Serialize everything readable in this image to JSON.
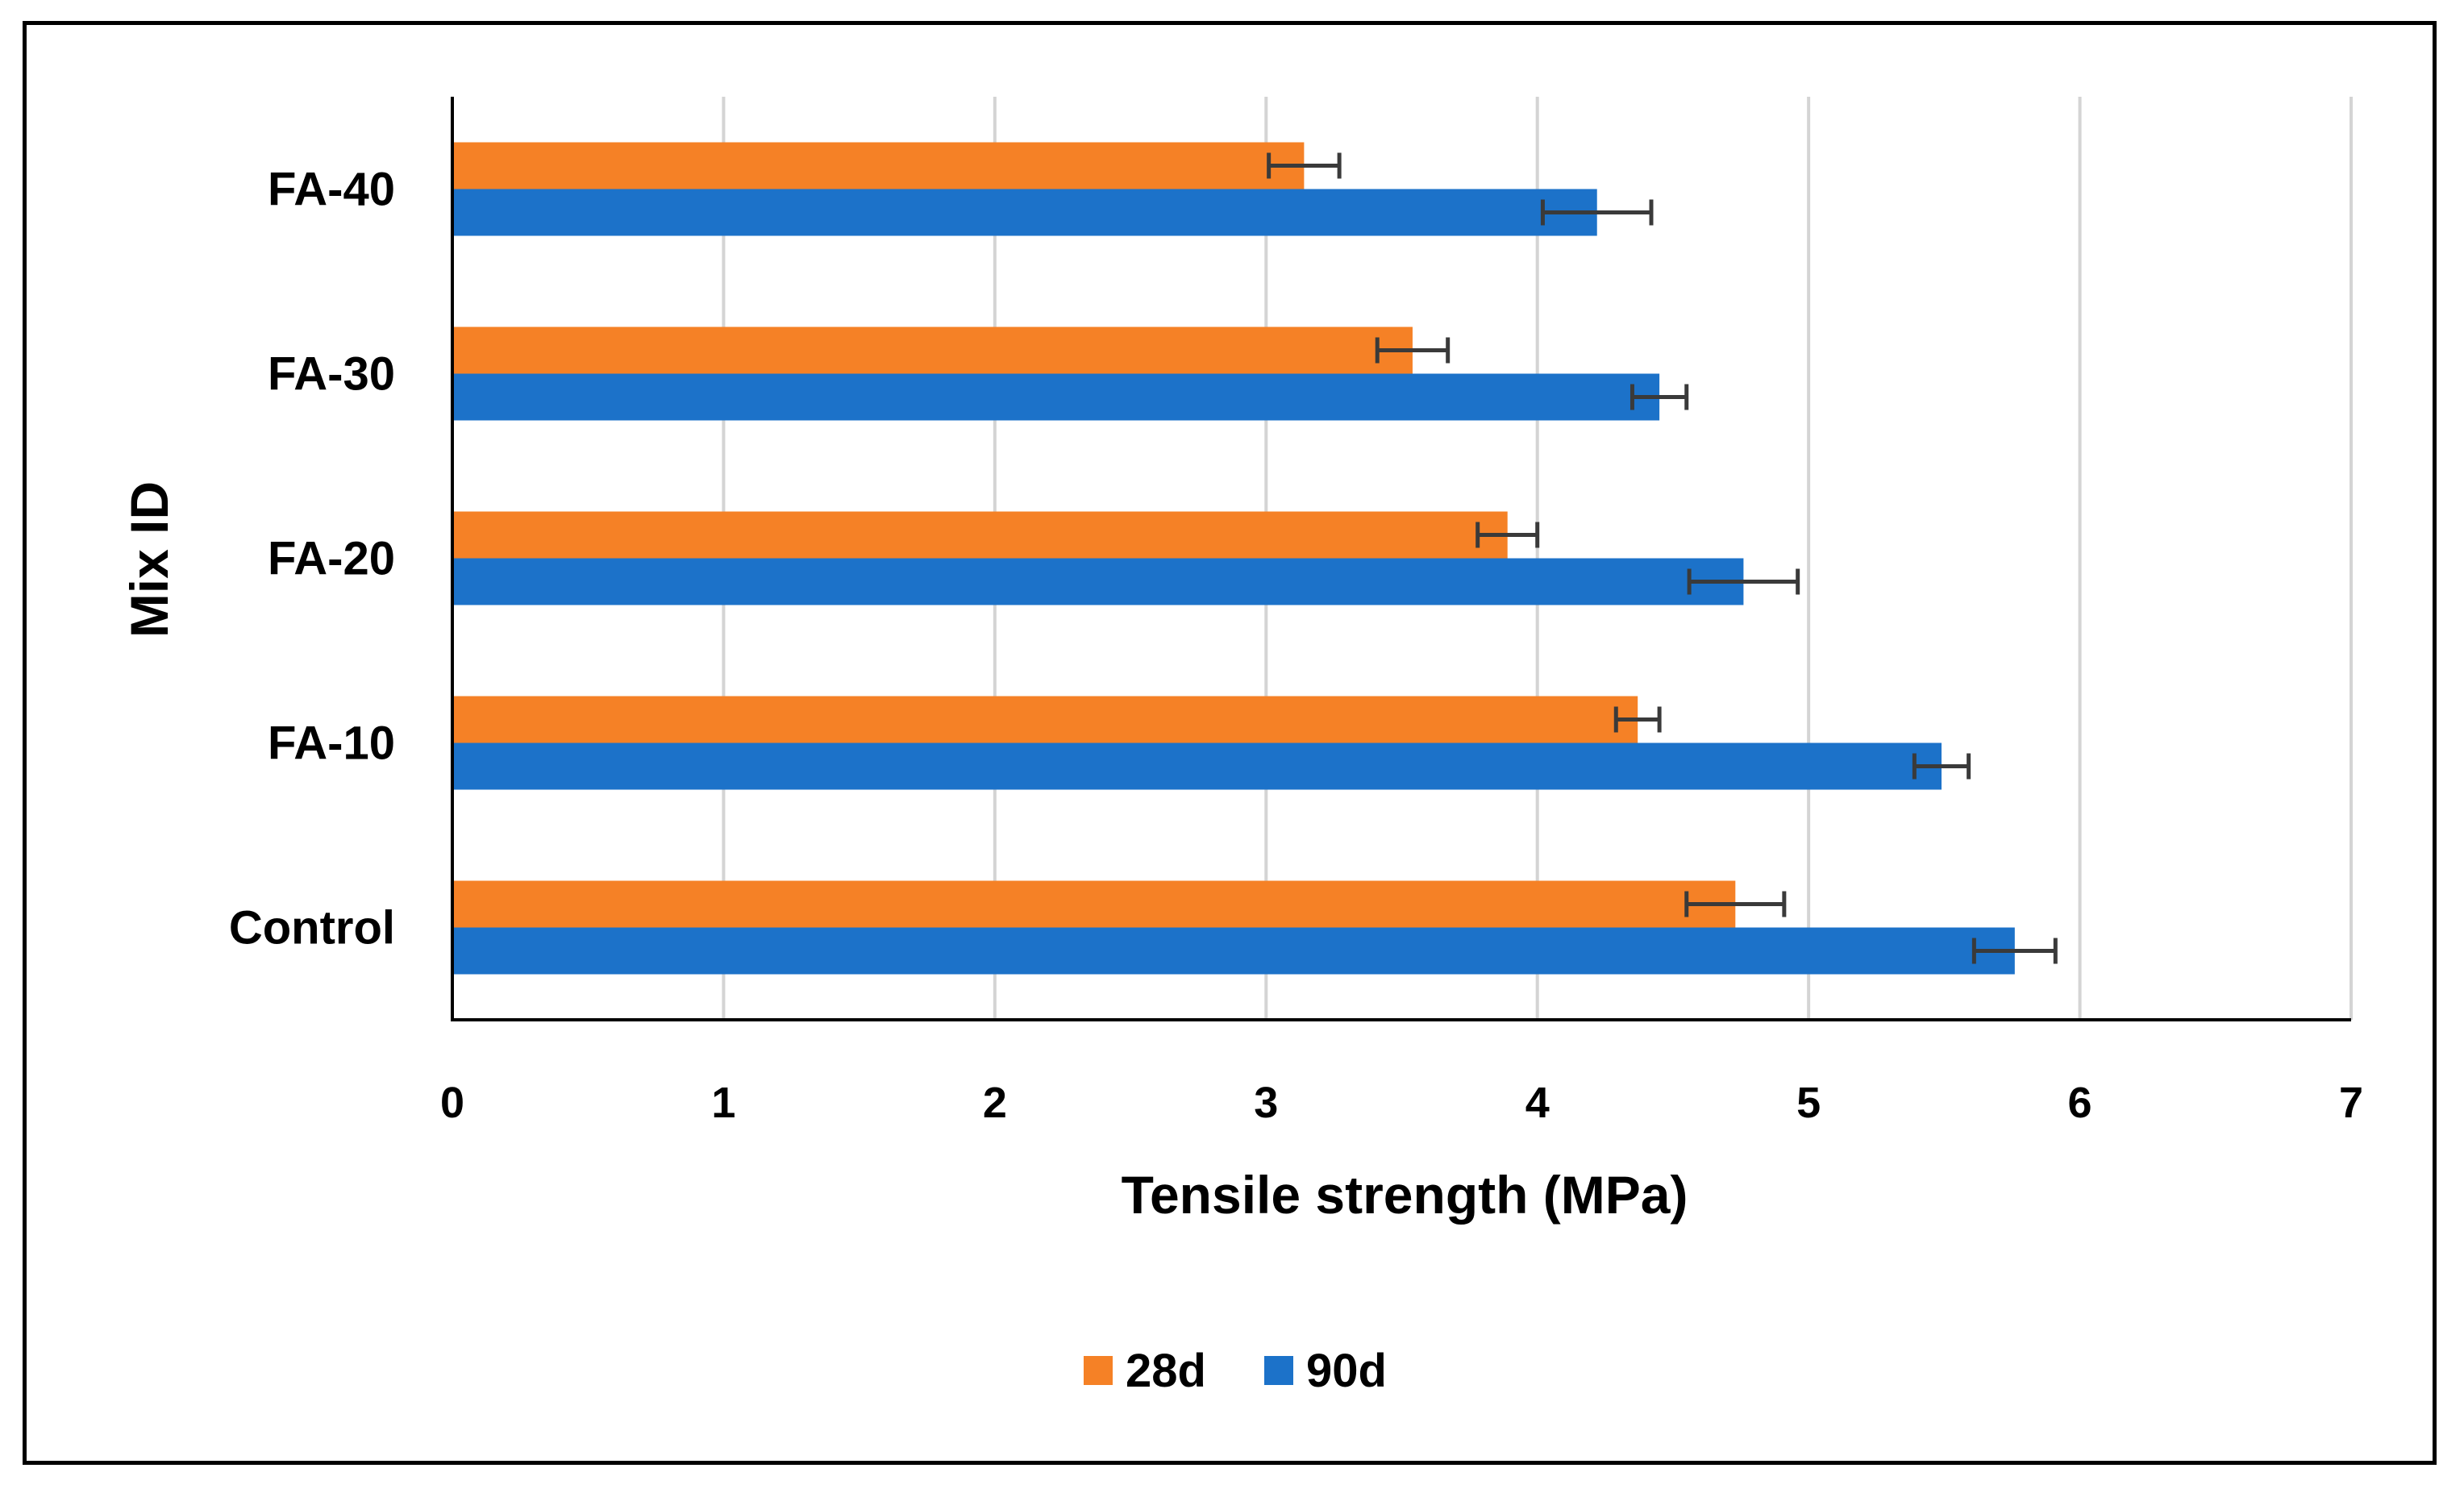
{
  "chart_data": {
    "type": "bar",
    "orientation": "horizontal",
    "title": "",
    "xlabel": "Tensile strength (MPa)",
    "ylabel": "Mix ID",
    "xlim": [
      0,
      7
    ],
    "xticks": [
      "0",
      "1",
      "2",
      "3",
      "4",
      "5",
      "6",
      "7"
    ],
    "categories": [
      "Control",
      "FA-10",
      "FA-20",
      "FA-30",
      "FA-40"
    ],
    "grid": "vertical",
    "legend_position": "bottom",
    "series": [
      {
        "name": "28d",
        "color": "#f58126",
        "values": [
          4.73,
          4.37,
          3.89,
          3.54,
          3.14
        ],
        "errors": [
          0.18,
          0.08,
          0.11,
          0.13,
          0.13
        ]
      },
      {
        "name": "90d",
        "color": "#1c72c9",
        "values": [
          5.76,
          5.49,
          4.76,
          4.45,
          4.22
        ],
        "errors": [
          0.15,
          0.1,
          0.2,
          0.1,
          0.2
        ]
      }
    ]
  }
}
